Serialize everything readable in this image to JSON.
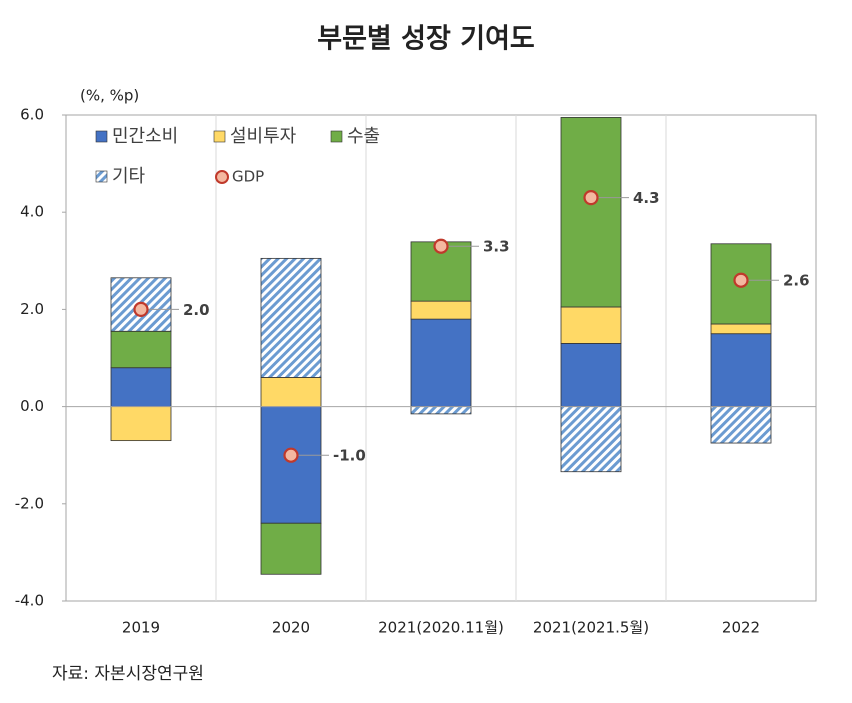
{
  "chart_data": {
    "type": "stacked_bar",
    "title": "부문별 성장 기여도",
    "ylabel": "(%, %p)",
    "source": "자료: 자본시장연구원",
    "categories": [
      "2019",
      "2020",
      "2021(2020.11월)",
      "2021(2021.5월)",
      "2022"
    ],
    "series": [
      {
        "name": "민간소비",
        "color": "#4472c4",
        "values": [
          0.8,
          -2.4,
          1.8,
          1.3,
          1.5
        ]
      },
      {
        "name": "설비투자",
        "color": "#ffd966",
        "values": [
          -0.7,
          0.6,
          0.37,
          0.75,
          0.2
        ]
      },
      {
        "name": "수출",
        "color": "#70ad47",
        "values": [
          0.75,
          -1.05,
          1.22,
          3.9,
          1.65
        ]
      },
      {
        "name": "기타",
        "color": "#6b9bd1",
        "hatch": true,
        "values": [
          1.1,
          2.45,
          -0.15,
          -1.34,
          -0.75
        ]
      }
    ],
    "line": {
      "name": "GDP",
      "color": "#c0392b",
      "fill": "#f4b8a0",
      "values": [
        2.0,
        -1.0,
        3.3,
        4.3,
        2.6
      ],
      "value_labels": [
        "2.0",
        "-1.0",
        "3.3",
        "4.3",
        "2.6"
      ]
    },
    "ylim": [
      -4,
      6
    ],
    "yticks": [
      {
        "value": -4,
        "label": "-4.0"
      },
      {
        "value": -2,
        "label": "-2.0"
      },
      {
        "value": 0,
        "label": "0.0"
      },
      {
        "value": 2,
        "label": "2.0"
      },
      {
        "value": 4,
        "label": "4.0"
      },
      {
        "value": 6,
        "label": "6.0"
      }
    ]
  }
}
